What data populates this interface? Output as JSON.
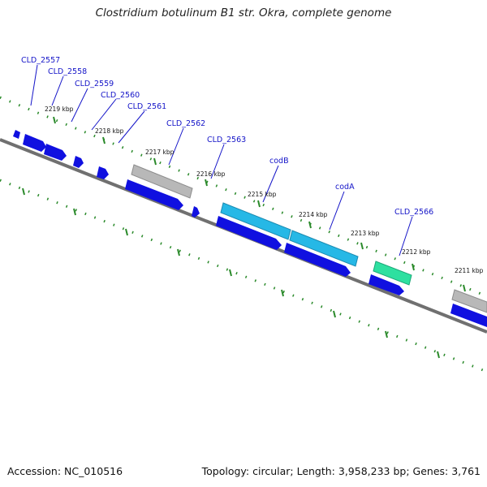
{
  "title": "Clostridium botulinum B1 str. Okra, complete genome",
  "footer": {
    "accession": "Accession: NC_010516",
    "summary": "Topology: circular; Length: 3,958,233 bp; Genes: 3,761"
  },
  "colors": {
    "backbone": "#707070",
    "tick": "#2a8a2a",
    "label": "#1414c8",
    "cds": "#1010e0",
    "gene_grey": "#b8b8b8",
    "gene_cyan": "#26b8e6",
    "gene_green": "#2ee0a0"
  },
  "ticks": [
    {
      "label": "2219 kbp"
    },
    {
      "label": "2218 kbp"
    },
    {
      "label": "2217 kbp"
    },
    {
      "label": "2216 kbp"
    },
    {
      "label": "2215 kbp"
    },
    {
      "label": "2214 kbp"
    },
    {
      "label": "2213 kbp"
    },
    {
      "label": "2212 kbp"
    },
    {
      "label": "2211 kbp"
    }
  ],
  "gene_labels": [
    {
      "name": "CLD_2557"
    },
    {
      "name": "CLD_2558"
    },
    {
      "name": "CLD_2559"
    },
    {
      "name": "CLD_2560"
    },
    {
      "name": "CLD_2561"
    },
    {
      "name": "CLD_2562"
    },
    {
      "name": "CLD_2563"
    },
    {
      "name": "codB"
    },
    {
      "name": "codA"
    },
    {
      "name": "CLD_2566"
    }
  ]
}
